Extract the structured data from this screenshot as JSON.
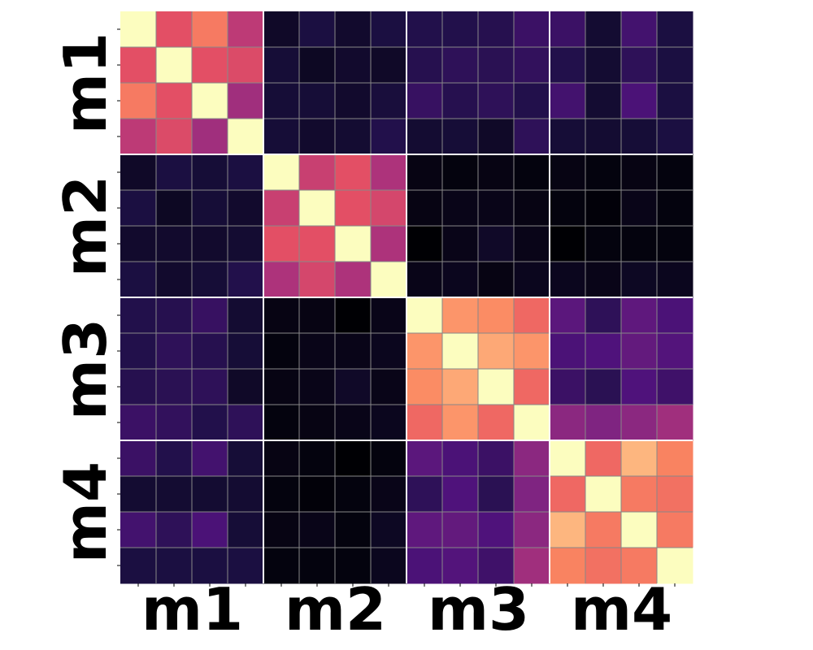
{
  "chart_data": {
    "type": "heatmap",
    "colormap": "magma",
    "value_range": [
      0,
      1
    ],
    "gridline_color": "#888888",
    "group_separator_color": "#ffffff",
    "groups": [
      "m1",
      "m2",
      "m3",
      "m4"
    ],
    "items_per_group": 4,
    "x_group_labels": [
      "m1",
      "m2",
      "m3",
      "m4"
    ],
    "y_group_labels": [
      "m1",
      "m2",
      "m3",
      "m4"
    ],
    "values": [
      [
        1.0,
        0.62,
        0.72,
        0.52,
        0.07,
        0.12,
        0.08,
        0.12,
        0.14,
        0.14,
        0.15,
        0.2,
        0.2,
        0.09,
        0.22,
        0.12
      ],
      [
        0.62,
        1.0,
        0.62,
        0.6,
        0.1,
        0.06,
        0.08,
        0.07,
        0.15,
        0.17,
        0.16,
        0.18,
        0.14,
        0.09,
        0.17,
        0.12
      ],
      [
        0.72,
        0.62,
        1.0,
        0.45,
        0.1,
        0.1,
        0.08,
        0.11,
        0.19,
        0.15,
        0.17,
        0.14,
        0.22,
        0.09,
        0.24,
        0.12
      ],
      [
        0.52,
        0.6,
        0.45,
        1.0,
        0.1,
        0.08,
        0.09,
        0.14,
        0.09,
        0.1,
        0.07,
        0.17,
        0.1,
        0.09,
        0.1,
        0.12
      ],
      [
        0.07,
        0.12,
        0.1,
        0.12,
        1.0,
        0.55,
        0.62,
        0.48,
        0.03,
        0.02,
        0.03,
        0.02,
        0.03,
        0.02,
        0.03,
        0.02
      ],
      [
        0.12,
        0.06,
        0.1,
        0.08,
        0.55,
        1.0,
        0.62,
        0.58,
        0.03,
        0.04,
        0.04,
        0.03,
        0.02,
        0.01,
        0.04,
        0.02
      ],
      [
        0.08,
        0.08,
        0.08,
        0.09,
        0.62,
        0.62,
        1.0,
        0.48,
        0.0,
        0.04,
        0.07,
        0.04,
        0.0,
        0.02,
        0.02,
        0.02
      ],
      [
        0.12,
        0.08,
        0.1,
        0.14,
        0.48,
        0.58,
        0.48,
        1.0,
        0.04,
        0.05,
        0.03,
        0.05,
        0.05,
        0.04,
        0.06,
        0.05
      ],
      [
        0.14,
        0.15,
        0.19,
        0.09,
        0.03,
        0.03,
        0.0,
        0.04,
        1.0,
        0.78,
        0.76,
        0.68,
        0.28,
        0.17,
        0.29,
        0.24
      ],
      [
        0.14,
        0.17,
        0.15,
        0.1,
        0.02,
        0.04,
        0.04,
        0.05,
        0.78,
        1.0,
        0.82,
        0.78,
        0.24,
        0.25,
        0.3,
        0.26
      ],
      [
        0.15,
        0.16,
        0.17,
        0.07,
        0.03,
        0.04,
        0.07,
        0.04,
        0.76,
        0.82,
        1.0,
        0.68,
        0.2,
        0.16,
        0.25,
        0.21
      ],
      [
        0.2,
        0.18,
        0.14,
        0.17,
        0.02,
        0.03,
        0.04,
        0.05,
        0.68,
        0.78,
        0.68,
        1.0,
        0.4,
        0.37,
        0.4,
        0.45
      ],
      [
        0.2,
        0.14,
        0.22,
        0.1,
        0.03,
        0.02,
        0.0,
        0.02,
        0.28,
        0.24,
        0.2,
        0.4,
        1.0,
        0.68,
        0.85,
        0.74
      ],
      [
        0.09,
        0.09,
        0.09,
        0.09,
        0.02,
        0.01,
        0.02,
        0.04,
        0.17,
        0.25,
        0.16,
        0.37,
        0.68,
        1.0,
        0.72,
        0.7
      ],
      [
        0.22,
        0.17,
        0.24,
        0.1,
        0.03,
        0.04,
        0.02,
        0.06,
        0.29,
        0.3,
        0.25,
        0.4,
        0.85,
        0.72,
        1.0,
        0.72
      ],
      [
        0.12,
        0.12,
        0.12,
        0.12,
        0.02,
        0.02,
        0.02,
        0.05,
        0.24,
        0.26,
        0.21,
        0.45,
        0.74,
        0.7,
        0.72,
        1.0
      ]
    ]
  }
}
